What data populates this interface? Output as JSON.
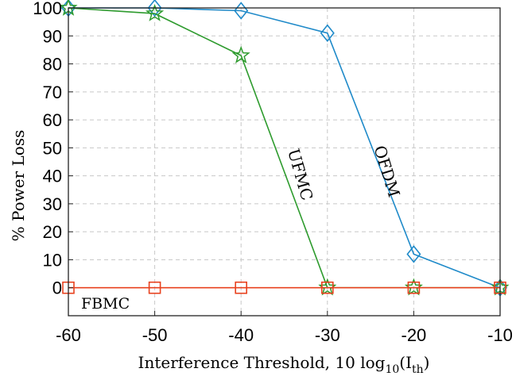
{
  "chart_data": {
    "type": "line",
    "xlabel": "Interference Threshold, 10 log10(Ith)",
    "xlabel_parts": {
      "main": "Interference Threshold, 10 log",
      "sub1": "10",
      "mid": "(I",
      "sub2": "th",
      "end": ")"
    },
    "ylabel": "% Power Loss",
    "xlim": [
      -60,
      -10
    ],
    "ylim": [
      -10,
      100
    ],
    "x": [
      -60,
      -50,
      -40,
      -30,
      -20,
      -10
    ],
    "xticks": [
      -60,
      -50,
      -40,
      -30,
      -20,
      -10
    ],
    "yticks": [
      0,
      10,
      20,
      30,
      40,
      50,
      60,
      70,
      80,
      90,
      100
    ],
    "grid": true,
    "series": [
      {
        "name": "OFDM",
        "color": "#1f8ac9",
        "marker": "diamond",
        "values": [
          100,
          100,
          99,
          91,
          12,
          0
        ]
      },
      {
        "name": "UFMC",
        "color": "#2e9b2e",
        "marker": "star",
        "values": [
          100,
          98,
          83,
          0,
          0,
          0
        ]
      },
      {
        "name": "FBMC",
        "color": "#e8421f",
        "marker": "square",
        "values": [
          0,
          0,
          0,
          0,
          0,
          0
        ]
      }
    ]
  }
}
